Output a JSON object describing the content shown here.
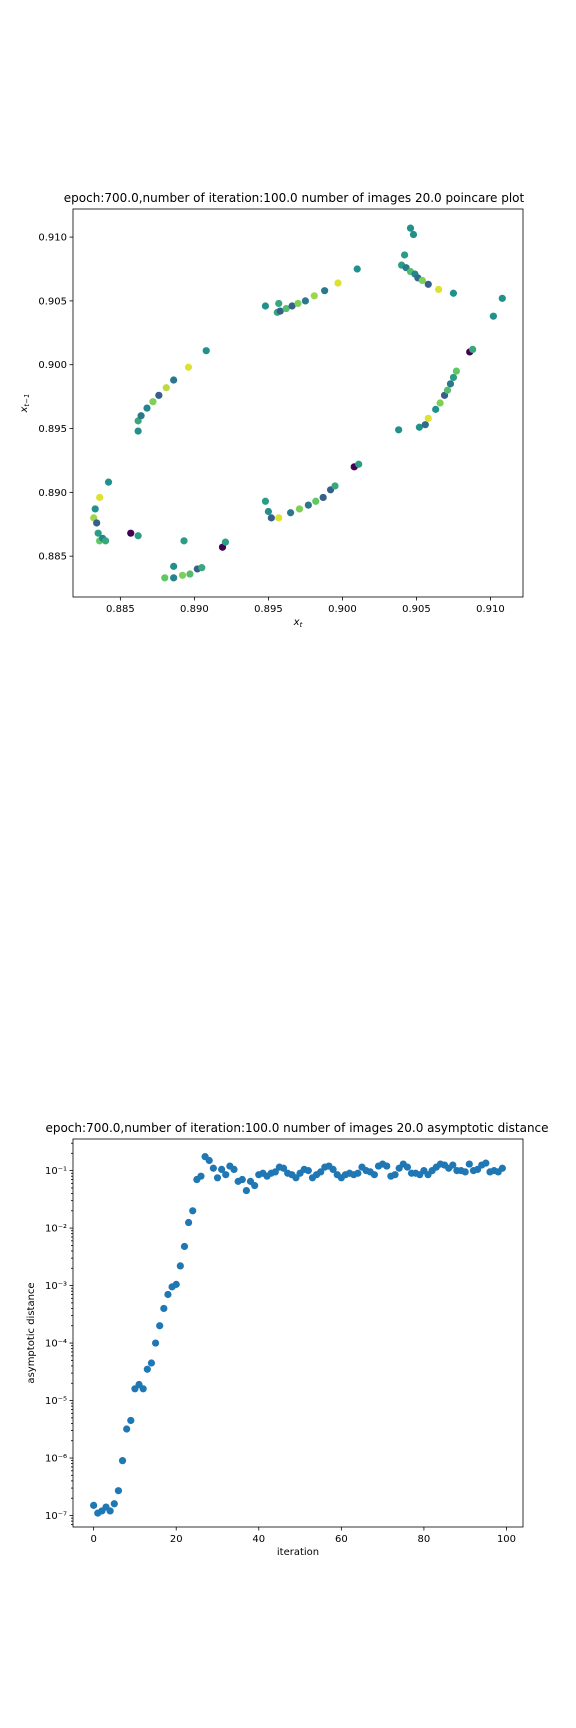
{
  "chart_data": [
    {
      "type": "scatter",
      "title": "epoch:700.0,number of iteration:100.0 number of images 20.0 poincare plot",
      "xlabel": "x_t",
      "ylabel": "x_{t-1}",
      "xlim": [
        0.8818,
        0.9122
      ],
      "ylim": [
        0.8818,
        0.9122
      ],
      "x_ticks": [
        0.885,
        0.89,
        0.895,
        0.9,
        0.905,
        0.91
      ],
      "x_tick_labels": [
        "0.885",
        "0.890",
        "0.895",
        "0.900",
        "0.905",
        "0.910"
      ],
      "y_ticks": [
        0.885,
        0.89,
        0.895,
        0.9,
        0.905,
        0.91
      ],
      "y_tick_labels": [
        "0.885",
        "0.890",
        "0.895",
        "0.900",
        "0.905",
        "0.910"
      ],
      "colormap": "viridis",
      "point_colors_note": "points colored by image index",
      "points": [
        [
          0.8832,
          0.888,
          0.85
        ],
        [
          0.8834,
          0.8876,
          0.3
        ],
        [
          0.8835,
          0.8868,
          0.55
        ],
        [
          0.8836,
          0.8862,
          0.75
        ],
        [
          0.8838,
          0.8864,
          0.45
        ],
        [
          0.8833,
          0.8887,
          0.5
        ],
        [
          0.8836,
          0.8896,
          0.95
        ],
        [
          0.8842,
          0.8908,
          0.5
        ],
        [
          0.884,
          0.8862,
          0.6
        ],
        [
          0.8857,
          0.8868,
          0.0
        ],
        [
          0.8862,
          0.8866,
          0.55
        ],
        [
          0.888,
          0.8833,
          0.75
        ],
        [
          0.8886,
          0.8833,
          0.45
        ],
        [
          0.8892,
          0.8835,
          0.8
        ],
        [
          0.8897,
          0.8836,
          0.7
        ],
        [
          0.8902,
          0.884,
          0.3
        ],
        [
          0.8905,
          0.8841,
          0.6
        ],
        [
          0.8886,
          0.8842,
          0.5
        ],
        [
          0.8893,
          0.8862,
          0.55
        ],
        [
          0.8919,
          0.8857,
          0.0
        ],
        [
          0.8921,
          0.8861,
          0.55
        ],
        [
          0.8862,
          0.8956,
          0.6
        ],
        [
          0.8864,
          0.896,
          0.4
        ],
        [
          0.8868,
          0.8966,
          0.45
        ],
        [
          0.8872,
          0.8971,
          0.8
        ],
        [
          0.8876,
          0.8976,
          0.3
        ],
        [
          0.8881,
          0.8982,
          0.9
        ],
        [
          0.8886,
          0.8988,
          0.4
        ],
        [
          0.8896,
          0.8998,
          0.95
        ],
        [
          0.8908,
          0.9011,
          0.5
        ],
        [
          0.8862,
          0.8948,
          0.5
        ],
        [
          0.8948,
          0.8893,
          0.55
        ],
        [
          0.895,
          0.8885,
          0.5
        ],
        [
          0.8952,
          0.888,
          0.3
        ],
        [
          0.8957,
          0.888,
          0.95
        ],
        [
          0.8965,
          0.8884,
          0.4
        ],
        [
          0.8971,
          0.8887,
          0.8
        ],
        [
          0.8977,
          0.889,
          0.4
        ],
        [
          0.8982,
          0.8893,
          0.75
        ],
        [
          0.8987,
          0.8896,
          0.3
        ],
        [
          0.8992,
          0.8902,
          0.3
        ],
        [
          0.8995,
          0.8905,
          0.6
        ],
        [
          0.9008,
          0.892,
          0.0
        ],
        [
          0.9011,
          0.8922,
          0.55
        ],
        [
          0.8948,
          0.9046,
          0.5
        ],
        [
          0.8956,
          0.9041,
          0.6
        ],
        [
          0.8958,
          0.9042,
          0.3
        ],
        [
          0.8962,
          0.9044,
          0.7
        ],
        [
          0.8966,
          0.9046,
          0.3
        ],
        [
          0.897,
          0.9048,
          0.8
        ],
        [
          0.8975,
          0.905,
          0.4
        ],
        [
          0.8981,
          0.9054,
          0.85
        ],
        [
          0.8988,
          0.9058,
          0.4
        ],
        [
          0.8997,
          0.9064,
          0.95
        ],
        [
          0.901,
          0.9075,
          0.5
        ],
        [
          0.8957,
          0.9048,
          0.6
        ],
        [
          0.904,
          0.9078,
          0.55
        ],
        [
          0.9043,
          0.9076,
          0.4
        ],
        [
          0.9046,
          0.9073,
          0.7
        ],
        [
          0.9049,
          0.9071,
          0.45
        ],
        [
          0.9051,
          0.9068,
          0.35
        ],
        [
          0.9054,
          0.9066,
          0.8
        ],
        [
          0.9058,
          0.9063,
          0.3
        ],
        [
          0.9065,
          0.9059,
          0.95
        ],
        [
          0.9075,
          0.9056,
          0.5
        ],
        [
          0.9042,
          0.9086,
          0.55
        ],
        [
          0.9046,
          0.9107,
          0.5
        ],
        [
          0.9048,
          0.9102,
          0.5
        ],
        [
          0.9102,
          0.9038,
          0.5
        ],
        [
          0.9108,
          0.9052,
          0.5
        ],
        [
          0.9052,
          0.8951,
          0.5
        ],
        [
          0.9056,
          0.8953,
          0.35
        ],
        [
          0.9058,
          0.8958,
          0.95
        ],
        [
          0.9063,
          0.8965,
          0.5
        ],
        [
          0.9066,
          0.897,
          0.8
        ],
        [
          0.9069,
          0.8976,
          0.3
        ],
        [
          0.9071,
          0.898,
          0.7
        ],
        [
          0.9073,
          0.8985,
          0.4
        ],
        [
          0.9075,
          0.899,
          0.55
        ],
        [
          0.9077,
          0.8995,
          0.75
        ],
        [
          0.9086,
          0.901,
          0.0
        ],
        [
          0.9088,
          0.9012,
          0.6
        ],
        [
          0.9038,
          0.8949,
          0.5
        ]
      ]
    },
    {
      "type": "scatter",
      "title": "epoch:700.0,number of iteration:100.0  number of images 20.0 asymptotic distance",
      "xlabel": "iteration",
      "ylabel": "asymptotic distance",
      "xlim": [
        -5,
        104
      ],
      "ylim_log10": [
        -7.2,
        -0.45
      ],
      "yscale": "log",
      "x_ticks": [
        0,
        20,
        40,
        60,
        80,
        100
      ],
      "x_tick_labels": [
        "0",
        "20",
        "40",
        "60",
        "80",
        "100"
      ],
      "y_ticks_log10": [
        -7,
        -6,
        -5,
        -4,
        -3,
        -2,
        -1
      ],
      "y_tick_labels": [
        "10⁻⁷",
        "10⁻⁶",
        "10⁻⁵",
        "10⁻⁴",
        "10⁻³",
        "10⁻²",
        "10⁻¹"
      ],
      "color": "#1f77b4",
      "x": [
        0,
        1,
        2,
        3,
        4,
        5,
        6,
        7,
        8,
        9,
        10,
        11,
        12,
        13,
        14,
        15,
        16,
        17,
        18,
        19,
        20,
        21,
        22,
        23,
        24,
        25,
        26,
        27,
        28,
        29,
        30,
        31,
        32,
        33,
        34,
        35,
        36,
        37,
        38,
        39,
        40,
        41,
        42,
        43,
        44,
        45,
        46,
        47,
        48,
        49,
        50,
        51,
        52,
        53,
        54,
        55,
        56,
        57,
        58,
        59,
        60,
        61,
        62,
        63,
        64,
        65,
        66,
        67,
        68,
        69,
        70,
        71,
        72,
        73,
        74,
        75,
        76,
        77,
        78,
        79,
        80,
        81,
        82,
        83,
        84,
        85,
        86,
        87,
        88,
        89,
        90,
        91,
        92,
        93,
        94,
        95,
        96,
        97,
        98,
        99
      ],
      "y": [
        1.5e-07,
        1.1e-07,
        1.2e-07,
        1.4e-07,
        1.2e-07,
        1.6e-07,
        2.7e-07,
        9e-07,
        3.2e-06,
        4.5e-06,
        1.6e-05,
        1.9e-05,
        1.6e-05,
        3.5e-05,
        4.5e-05,
        0.0001,
        0.0002,
        0.0004,
        0.0007,
        0.00095,
        0.00105,
        0.0022,
        0.0048,
        0.0125,
        0.02,
        0.07,
        0.08,
        0.175,
        0.15,
        0.11,
        0.075,
        0.105,
        0.085,
        0.12,
        0.105,
        0.065,
        0.07,
        0.045,
        0.065,
        0.055,
        0.085,
        0.09,
        0.08,
        0.09,
        0.095,
        0.115,
        0.11,
        0.09,
        0.085,
        0.075,
        0.09,
        0.105,
        0.1,
        0.075,
        0.085,
        0.095,
        0.115,
        0.12,
        0.105,
        0.085,
        0.075,
        0.085,
        0.09,
        0.085,
        0.09,
        0.115,
        0.1,
        0.095,
        0.085,
        0.12,
        0.13,
        0.12,
        0.08,
        0.085,
        0.11,
        0.13,
        0.115,
        0.09,
        0.09,
        0.085,
        0.1,
        0.085,
        0.1,
        0.115,
        0.13,
        0.125,
        0.11,
        0.125,
        0.1,
        0.1,
        0.095,
        0.13,
        0.1,
        0.105,
        0.125,
        0.135,
        0.095,
        0.1,
        0.095,
        0.11
      ]
    }
  ]
}
